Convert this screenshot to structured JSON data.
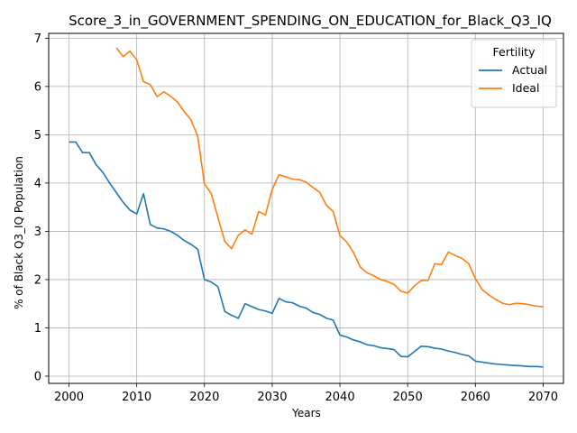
{
  "chart_data": {
    "type": "line",
    "title": "Score_3_in_GOVERNMENT_SPENDING_ON_EDUCATION_for_Black_Q3_IQ",
    "xlabel": "Years",
    "ylabel": "% of Black Q3_IQ Population",
    "xlim": [
      1997,
      2073
    ],
    "ylim": [
      -0.15,
      7.1
    ],
    "xticks": [
      2000,
      2010,
      2020,
      2030,
      2040,
      2050,
      2060,
      2070
    ],
    "yticks": [
      0,
      1,
      2,
      3,
      4,
      5,
      6,
      7
    ],
    "grid": true,
    "legend": {
      "title": "Fertility",
      "placement": "top-right"
    },
    "series": [
      {
        "name": "Actual",
        "color": "#1f77b4",
        "points": [
          [
            2000,
            4.85
          ],
          [
            2001,
            4.85
          ],
          [
            2002,
            4.63
          ],
          [
            2003,
            4.63
          ],
          [
            2004,
            4.38
          ],
          [
            2005,
            4.22
          ],
          [
            2006,
            4.0
          ],
          [
            2007,
            3.8
          ],
          [
            2008,
            3.6
          ],
          [
            2009,
            3.44
          ],
          [
            2010,
            3.36
          ],
          [
            2011,
            3.78
          ],
          [
            2012,
            3.14
          ],
          [
            2013,
            3.07
          ],
          [
            2014,
            3.05
          ],
          [
            2015,
            3.0
          ],
          [
            2016,
            2.92
          ],
          [
            2017,
            2.81
          ],
          [
            2018,
            2.73
          ],
          [
            2019,
            2.63
          ],
          [
            2020,
            2.0
          ],
          [
            2021,
            1.95
          ],
          [
            2022,
            1.85
          ],
          [
            2023,
            1.34
          ],
          [
            2024,
            1.26
          ],
          [
            2025,
            1.2
          ],
          [
            2026,
            1.5
          ],
          [
            2027,
            1.44
          ],
          [
            2028,
            1.38
          ],
          [
            2029,
            1.35
          ],
          [
            2030,
            1.3
          ],
          [
            2031,
            1.61
          ],
          [
            2032,
            1.54
          ],
          [
            2033,
            1.52
          ],
          [
            2034,
            1.45
          ],
          [
            2035,
            1.41
          ],
          [
            2036,
            1.32
          ],
          [
            2037,
            1.28
          ],
          [
            2038,
            1.2
          ],
          [
            2039,
            1.16
          ],
          [
            2040,
            0.85
          ],
          [
            2041,
            0.81
          ],
          [
            2042,
            0.75
          ],
          [
            2043,
            0.71
          ],
          [
            2044,
            0.65
          ],
          [
            2045,
            0.63
          ],
          [
            2046,
            0.59
          ],
          [
            2047,
            0.57
          ],
          [
            2048,
            0.55
          ],
          [
            2049,
            0.41
          ],
          [
            2050,
            0.4
          ],
          [
            2051,
            0.51
          ],
          [
            2052,
            0.62
          ],
          [
            2053,
            0.61
          ],
          [
            2054,
            0.58
          ],
          [
            2055,
            0.56
          ],
          [
            2056,
            0.52
          ],
          [
            2057,
            0.49
          ],
          [
            2058,
            0.45
          ],
          [
            2059,
            0.42
          ],
          [
            2060,
            0.31
          ],
          [
            2061,
            0.29
          ],
          [
            2062,
            0.27
          ],
          [
            2063,
            0.25
          ],
          [
            2064,
            0.24
          ],
          [
            2065,
            0.23
          ],
          [
            2066,
            0.22
          ],
          [
            2067,
            0.21
          ],
          [
            2068,
            0.2
          ],
          [
            2069,
            0.2
          ],
          [
            2070,
            0.19
          ]
        ]
      },
      {
        "name": "Ideal",
        "color": "#ff7f0e",
        "points": [
          [
            2007,
            6.8
          ],
          [
            2008,
            6.62
          ],
          [
            2009,
            6.73
          ],
          [
            2010,
            6.55
          ],
          [
            2011,
            6.1
          ],
          [
            2012,
            6.04
          ],
          [
            2013,
            5.79
          ],
          [
            2014,
            5.89
          ],
          [
            2015,
            5.8
          ],
          [
            2016,
            5.68
          ],
          [
            2017,
            5.48
          ],
          [
            2018,
            5.31
          ],
          [
            2019,
            4.97
          ],
          [
            2020,
            3.98
          ],
          [
            2021,
            3.78
          ],
          [
            2022,
            3.28
          ],
          [
            2023,
            2.79
          ],
          [
            2024,
            2.64
          ],
          [
            2025,
            2.92
          ],
          [
            2026,
            3.03
          ],
          [
            2027,
            2.94
          ],
          [
            2028,
            3.41
          ],
          [
            2029,
            3.34
          ],
          [
            2030,
            3.87
          ],
          [
            2031,
            4.17
          ],
          [
            2032,
            4.13
          ],
          [
            2033,
            4.08
          ],
          [
            2034,
            4.07
          ],
          [
            2035,
            4.02
          ],
          [
            2036,
            3.91
          ],
          [
            2037,
            3.81
          ],
          [
            2038,
            3.54
          ],
          [
            2039,
            3.41
          ],
          [
            2040,
            2.91
          ],
          [
            2041,
            2.78
          ],
          [
            2042,
            2.56
          ],
          [
            2043,
            2.26
          ],
          [
            2044,
            2.14
          ],
          [
            2045,
            2.08
          ],
          [
            2046,
            2.0
          ],
          [
            2047,
            1.96
          ],
          [
            2048,
            1.9
          ],
          [
            2049,
            1.76
          ],
          [
            2050,
            1.72
          ],
          [
            2051,
            1.87
          ],
          [
            2052,
            1.98
          ],
          [
            2053,
            1.98
          ],
          [
            2054,
            2.33
          ],
          [
            2055,
            2.31
          ],
          [
            2056,
            2.57
          ],
          [
            2057,
            2.5
          ],
          [
            2058,
            2.44
          ],
          [
            2059,
            2.33
          ],
          [
            2060,
            2.02
          ],
          [
            2061,
            1.79
          ],
          [
            2062,
            1.68
          ],
          [
            2063,
            1.59
          ],
          [
            2064,
            1.51
          ],
          [
            2065,
            1.48
          ],
          [
            2066,
            1.51
          ],
          [
            2067,
            1.5
          ],
          [
            2068,
            1.48
          ],
          [
            2069,
            1.45
          ],
          [
            2070,
            1.44
          ]
        ]
      }
    ]
  }
}
